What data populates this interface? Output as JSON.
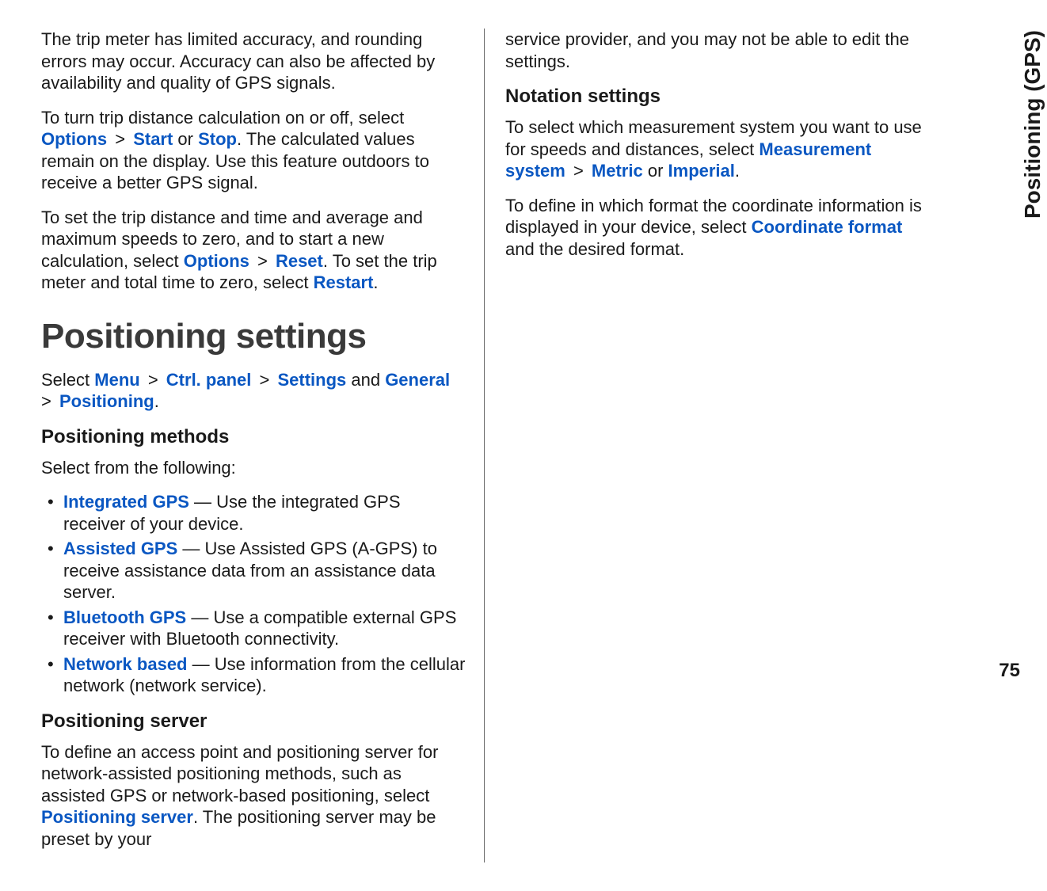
{
  "page": {
    "side_label": "Positioning (GPS)",
    "number": "75"
  },
  "left": {
    "p1": "The trip meter has limited accuracy, and rounding errors may occur. Accuracy can also be affected by availability and quality of GPS signals.",
    "p2_a": "To turn trip distance calculation on or off, select ",
    "p2_options": "Options",
    "p2_gt": " > ",
    "p2_start": "Start",
    "p2_or": " or ",
    "p2_stop": "Stop",
    "p2_b": ". The calculated values remain on the display. Use this feature outdoors to receive a better GPS signal.",
    "p3_a": "To set the trip distance and time and average and maximum speeds to zero, and to start a new calculation, select ",
    "p3_options": "Options",
    "p3_gt": " > ",
    "p3_reset": "Reset",
    "p3_b": ". To set the trip meter and total time to zero, select ",
    "p3_restart": "Restart",
    "p3_c": ".",
    "h1": "Positioning settings",
    "nav_a": "Select ",
    "nav_menu": "Menu",
    "nav_gt1": " > ",
    "nav_ctrl": "Ctrl. panel",
    "nav_gt2": " > ",
    "nav_settings": "Settings",
    "nav_and": " and ",
    "nav_general": "General",
    "nav_gt3": " > ",
    "nav_positioning": "Positioning",
    "nav_b": ".",
    "h2_methods": "Positioning methods",
    "methods_intro": "Select from the following:",
    "methods": [
      {
        "label": "Integrated GPS",
        "desc": "  — Use the integrated GPS receiver of your device."
      },
      {
        "label": "Assisted GPS",
        "desc": "  — Use Assisted GPS (A-GPS) to receive assistance data from an assistance data server."
      },
      {
        "label": "Bluetooth GPS",
        "desc": "  — Use a compatible external GPS receiver with Bluetooth connectivity."
      },
      {
        "label": "Network based",
        "desc": "  — Use information from the cellular network (network service)."
      }
    ],
    "h2_server": "Positioning server",
    "server_a": "To define an access point and positioning server for network-assisted positioning methods, such as assisted GPS or network-based positioning, select ",
    "server_link": "Positioning server",
    "server_b": ". The positioning server may be preset by your"
  },
  "right": {
    "p1": "service provider, and you may not be able to edit the settings.",
    "h2_notation": "Notation settings",
    "p2_a": "To select which measurement system you want to use for speeds and distances, select ",
    "p2_measurement": "Measurement system",
    "p2_gt": " > ",
    "p2_metric": "Metric",
    "p2_or": " or ",
    "p2_imperial": "Imperial",
    "p2_b": ".",
    "p3_a": "To define in which format the coordinate information is displayed in your device, select ",
    "p3_coord": "Coordinate format",
    "p3_b": " and the desired format."
  }
}
